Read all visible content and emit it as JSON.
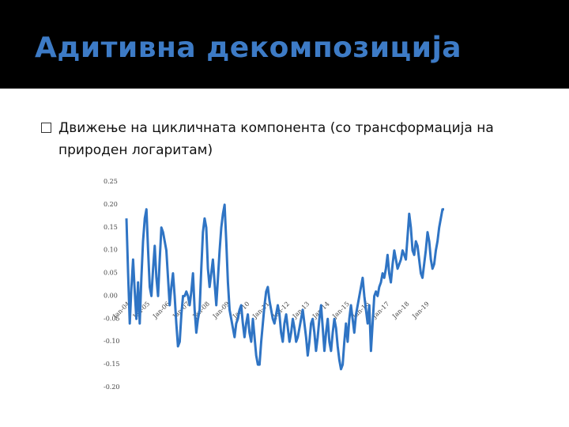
{
  "header": {
    "title": "Адитивна декомпозиција"
  },
  "bullet": "Движење на цикличната компонента (со трансформација на природен логаритам)",
  "chart_data": {
    "type": "line",
    "color": "#2f74c4",
    "categories": [
      "Jan-04",
      null,
      null,
      null,
      null,
      null,
      null,
      null,
      null,
      null,
      null,
      null,
      "Jan-05",
      null,
      null,
      null,
      null,
      null,
      null,
      null,
      null,
      null,
      null,
      null,
      "Jan-06",
      null,
      null,
      null,
      null,
      null,
      null,
      null,
      null,
      null,
      null,
      null,
      "Jan-07",
      null,
      null,
      null,
      null,
      null,
      null,
      null,
      null,
      null,
      null,
      null,
      "Jan-08",
      null,
      null,
      null,
      null,
      null,
      null,
      null,
      null,
      null,
      null,
      null,
      "Jan-09",
      null,
      null,
      null,
      null,
      null,
      null,
      null,
      null,
      null,
      null,
      null,
      "Jan-10",
      null,
      null,
      null,
      null,
      null,
      null,
      null,
      null,
      null,
      null,
      null,
      "Jan-11",
      null,
      null,
      null,
      null,
      null,
      null,
      null,
      null,
      null,
      null,
      null,
      "Jan-12",
      null,
      null,
      null,
      null,
      null,
      null,
      null,
      null,
      null,
      null,
      null,
      "Jan-13",
      null,
      null,
      null,
      null,
      null,
      null,
      null,
      null,
      null,
      null,
      null,
      "Jan-14",
      null,
      null,
      null,
      null,
      null,
      null,
      null,
      null,
      null,
      null,
      null,
      "Jan-15",
      null,
      null,
      null,
      null,
      null,
      null,
      null,
      null,
      null,
      null,
      null,
      "Jan-16",
      null,
      null,
      null,
      null,
      null,
      null,
      null,
      null,
      null,
      null,
      null,
      "Jan-17",
      null,
      null,
      null,
      null,
      null,
      null,
      null,
      null,
      null,
      null,
      null,
      "Jan-18",
      null,
      null,
      null,
      null,
      null,
      null,
      null,
      null,
      null,
      null,
      null,
      "Jan-19",
      null,
      null,
      null,
      null,
      null,
      null,
      null,
      null,
      null,
      null,
      null
    ],
    "values": [
      0.17,
      0.05,
      -0.06,
      0.02,
      0.08,
      0.01,
      -0.05,
      0.03,
      -0.06,
      0.04,
      0.12,
      0.17,
      0.19,
      0.1,
      0.02,
      0.0,
      0.06,
      0.11,
      0.04,
      0.0,
      0.08,
      0.15,
      0.14,
      0.12,
      0.1,
      0.04,
      -0.02,
      0.02,
      0.05,
      0.0,
      -0.06,
      -0.11,
      -0.1,
      -0.04,
      0.0,
      0.0,
      0.01,
      0.0,
      -0.02,
      0.01,
      0.05,
      -0.03,
      -0.08,
      -0.05,
      -0.03,
      0.06,
      0.14,
      0.17,
      0.15,
      0.06,
      0.02,
      0.05,
      0.08,
      0.03,
      -0.02,
      0.04,
      0.1,
      0.15,
      0.18,
      0.2,
      0.12,
      0.03,
      -0.03,
      -0.05,
      -0.07,
      -0.09,
      -0.06,
      -0.05,
      -0.03,
      -0.02,
      -0.06,
      -0.09,
      -0.06,
      -0.04,
      -0.08,
      -0.1,
      -0.05,
      -0.09,
      -0.13,
      -0.15,
      -0.15,
      -0.1,
      -0.06,
      -0.02,
      0.01,
      0.02,
      -0.01,
      -0.03,
      -0.05,
      -0.06,
      -0.04,
      -0.02,
      -0.04,
      -0.08,
      -0.1,
      -0.06,
      -0.04,
      -0.07,
      -0.1,
      -0.08,
      -0.05,
      -0.07,
      -0.1,
      -0.09,
      -0.07,
      -0.05,
      -0.03,
      -0.06,
      -0.09,
      -0.13,
      -0.1,
      -0.06,
      -0.05,
      -0.08,
      -0.12,
      -0.09,
      -0.05,
      -0.02,
      -0.07,
      -0.12,
      -0.08,
      -0.05,
      -0.1,
      -0.12,
      -0.08,
      -0.05,
      -0.07,
      -0.11,
      -0.14,
      -0.16,
      -0.15,
      -0.1,
      -0.06,
      -0.1,
      -0.05,
      -0.02,
      -0.05,
      -0.08,
      -0.04,
      -0.02,
      0.0,
      0.02,
      0.04,
      0.0,
      -0.03,
      -0.06,
      -0.02,
      -0.12,
      -0.06,
      0.0,
      0.01,
      0.0,
      0.02,
      0.03,
      0.05,
      0.04,
      0.06,
      0.09,
      0.05,
      0.03,
      0.07,
      0.1,
      0.08,
      0.06,
      0.07,
      0.08,
      0.1,
      0.09,
      0.08,
      0.13,
      0.18,
      0.15,
      0.1,
      0.09,
      0.12,
      0.11,
      0.08,
      0.05,
      0.04,
      0.07,
      0.1,
      0.14,
      0.12,
      0.08,
      0.06,
      0.07,
      0.1,
      0.12,
      0.15,
      0.17,
      0.19,
      0.19
    ],
    "ylim": [
      -0.2,
      0.25
    ],
    "yticks": [
      0.25,
      {
        "value": 0.2,
        "label": "0.20"
      },
      0.15,
      {
        "value": 0.1,
        "label": "0.10"
      },
      0.05,
      {
        "value": 0,
        "label": "0.00"
      },
      -0.05,
      {
        "value": -0.1,
        "label": "-0.10"
      },
      -0.15,
      {
        "value": -0.2,
        "label": "-0.20"
      }
    ]
  }
}
